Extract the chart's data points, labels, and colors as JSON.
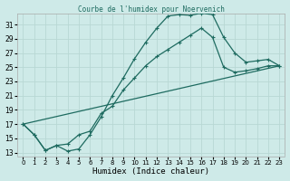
{
  "title": "Courbe de l'humidex pour Noervenich",
  "xlabel": "Humidex (Indice chaleur)",
  "bg_color": "#ceeae8",
  "grid_color": "#b8d8d4",
  "line_color": "#1e6b60",
  "xlim": [
    -0.5,
    23.5
  ],
  "ylim": [
    12.5,
    32.5
  ],
  "xticks": [
    0,
    1,
    2,
    3,
    4,
    5,
    6,
    7,
    8,
    9,
    10,
    11,
    12,
    13,
    14,
    15,
    16,
    17,
    18,
    19,
    20,
    21,
    22,
    23
  ],
  "yticks": [
    13,
    15,
    17,
    19,
    21,
    23,
    25,
    27,
    29,
    31
  ],
  "curve1_x": [
    0,
    1,
    2,
    3,
    4,
    5,
    6,
    7,
    8,
    9,
    10,
    11,
    12,
    13,
    14,
    15,
    16,
    17,
    18,
    19,
    20,
    21,
    22,
    23
  ],
  "curve1_y": [
    17.0,
    15.5,
    13.3,
    14.0,
    13.2,
    13.5,
    15.5,
    18.0,
    21.0,
    23.5,
    26.2,
    28.5,
    30.5,
    32.2,
    32.4,
    32.3,
    32.6,
    32.4,
    29.2,
    27.0,
    25.7,
    25.9,
    26.1,
    25.2
  ],
  "curve2_x": [
    0,
    1,
    2,
    3,
    4,
    5,
    6,
    7,
    8,
    9,
    10,
    11,
    12,
    13,
    14,
    15,
    16,
    17,
    18,
    19,
    20,
    21,
    22,
    23
  ],
  "curve2_y": [
    17.0,
    15.5,
    13.3,
    14.0,
    14.2,
    15.5,
    16.0,
    18.5,
    19.5,
    21.8,
    23.5,
    25.2,
    26.5,
    27.5,
    28.5,
    29.5,
    30.5,
    29.2,
    25.0,
    24.3,
    24.5,
    24.8,
    25.2,
    25.2
  ],
  "line3_x": [
    0,
    23
  ],
  "line3_y": [
    17.0,
    25.2
  ]
}
